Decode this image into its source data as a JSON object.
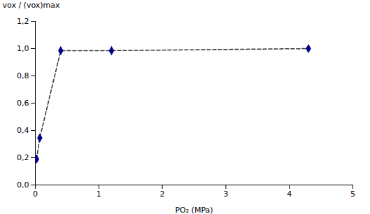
{
  "chart_data": {
    "type": "line",
    "xlabel": "PO₂ (MPa)",
    "ylabel": "vox / (vox)max",
    "x": [
      0.02,
      0.07,
      0.4,
      1.2,
      4.3
    ],
    "series": [
      {
        "type": "line",
        "color": "#333333",
        "line_style": "dashed",
        "values": [
          0.19,
          0.345,
          0.985,
          0.985,
          1.0
        ]
      },
      {
        "type": "scatter",
        "color": "#00008B",
        "marker": "diamond",
        "values": [
          0.19,
          0.345,
          0.985,
          0.985,
          1.0
        ]
      }
    ],
    "xlim": [
      0,
      5
    ],
    "ylim": [
      0,
      1.2
    ],
    "xticks": [
      0,
      1,
      2,
      3,
      4,
      5
    ],
    "yticks": [
      {
        "value": 0.0,
        "label": "0,0"
      },
      {
        "value": 0.2,
        "label": "0,2"
      },
      {
        "value": 0.4,
        "label": "0,4"
      },
      {
        "value": 0.6,
        "label": "0,6"
      },
      {
        "value": 0.8,
        "label": "0,8"
      },
      {
        "value": 1.0,
        "label": "1,0"
      },
      {
        "value": 1.2,
        "label": "1,2"
      }
    ],
    "grid": false
  }
}
